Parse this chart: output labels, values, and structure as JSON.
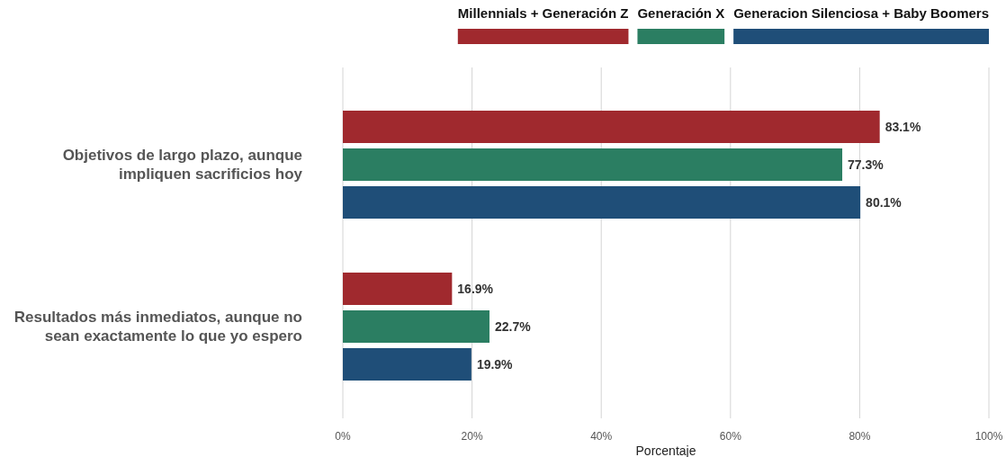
{
  "chart_data": {
    "type": "bar",
    "orientation": "horizontal",
    "xlabel": "Porcentaje",
    "categories": [
      "Objetivos de largo plazo, aunque impliquen sacrificios hoy",
      "Resultados más inmediatos, aunque no sean exactamente lo que yo espero"
    ],
    "series": [
      {
        "name": "Millennials + Generación Z",
        "color": "#a0292e",
        "values": [
          83.1,
          16.9
        ],
        "value_labels": [
          "83.1%",
          "16.9%"
        ]
      },
      {
        "name": "Generación X",
        "color": "#2b7e62",
        "values": [
          77.3,
          22.7
        ],
        "value_labels": [
          "77.3%",
          "22.7%"
        ]
      },
      {
        "name": "Generacion Silenciosa + Baby Boomers",
        "color": "#1f4e78",
        "values": [
          80.1,
          19.9
        ],
        "value_labels": [
          "80.1%",
          "19.9%"
        ]
      }
    ],
    "xlim": [
      0,
      100
    ],
    "xticks": [
      {
        "value": 0,
        "label": "0%"
      },
      {
        "value": 20,
        "label": "20%"
      },
      {
        "value": 40,
        "label": "40%"
      },
      {
        "value": 60,
        "label": "60%"
      },
      {
        "value": 80,
        "label": "80%"
      },
      {
        "value": 100,
        "label": "100%"
      }
    ],
    "grid": "x",
    "legend": "top"
  }
}
